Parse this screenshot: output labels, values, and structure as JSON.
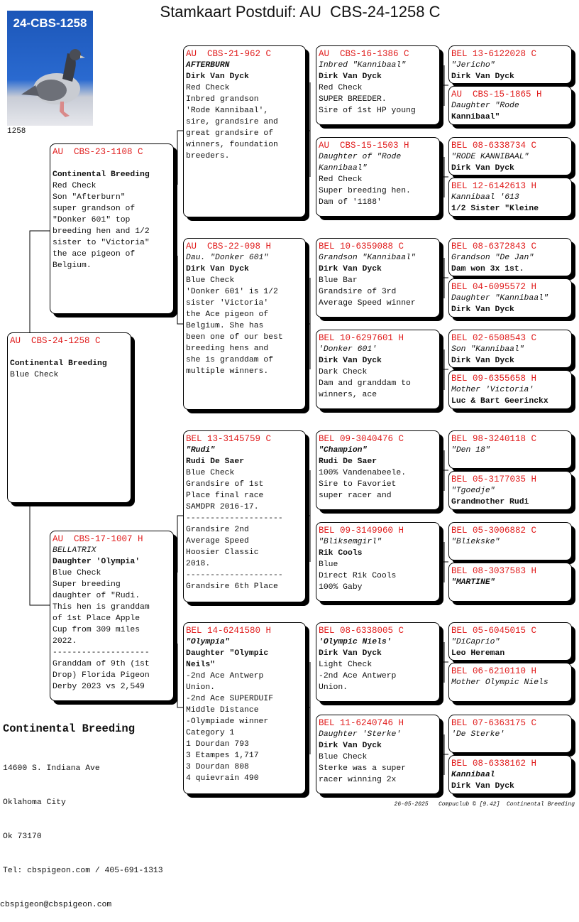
{
  "title": "Stamkaart Postduif: AU  CBS-24-1258 C",
  "photo": {
    "label": "24-CBS-1258",
    "caption": "1258"
  },
  "colors": {
    "ring": "#e01b1b",
    "shadow": "#000000",
    "photo_bg": "#2a6ad0"
  },
  "cards": {
    "subject": [
      {
        "t": "AU  CBS-24-1258 C",
        "s": "ring"
      },
      {
        "t": "",
        "s": ""
      },
      {
        "t": "Continental Breeding",
        "s": "b"
      },
      {
        "t": "Blue Check",
        "s": ""
      }
    ],
    "sire": [
      {
        "t": "AU  CBS-23-1108 C",
        "s": "ring"
      },
      {
        "t": "",
        "s": ""
      },
      {
        "t": "Continental Breeding",
        "s": "b"
      },
      {
        "t": "Red Check",
        "s": ""
      },
      {
        "t": "Son \"Afterburn\"",
        "s": ""
      },
      {
        "t": "super grandson of",
        "s": ""
      },
      {
        "t": "\"Donker 601\" top",
        "s": ""
      },
      {
        "t": "breeding hen and 1/2",
        "s": ""
      },
      {
        "t": "sister to \"Victoria\"",
        "s": ""
      },
      {
        "t": "the ace pigeon of",
        "s": ""
      },
      {
        "t": "Belgium.",
        "s": ""
      }
    ],
    "dam": [
      {
        "t": "AU  CBS-17-1007 H",
        "s": "ring"
      },
      {
        "t": "BELLATRIX",
        "s": "i"
      },
      {
        "t": "Daughter 'Olympia'",
        "s": "b"
      },
      {
        "t": "Blue Check",
        "s": ""
      },
      {
        "t": "Super breeding",
        "s": ""
      },
      {
        "t": "daughter of \"Rudi.",
        "s": ""
      },
      {
        "t": "This hen is granddam",
        "s": ""
      },
      {
        "t": "of 1st Place Apple",
        "s": ""
      },
      {
        "t": "Cup from 309 miles",
        "s": ""
      },
      {
        "t": "2022.",
        "s": ""
      },
      {
        "t": "--------------------",
        "s": ""
      },
      {
        "t": "Granddam of 9th (1st",
        "s": ""
      },
      {
        "t": "Drop) Florida Pigeon",
        "s": ""
      },
      {
        "t": "Derby 2023 vs 2,549",
        "s": ""
      }
    ],
    "gen3": [
      [
        {
          "t": "AU  CBS-21-962 C",
          "s": "ring"
        },
        {
          "t": "AFTERBURN",
          "s": "bi"
        },
        {
          "t": "Dirk Van Dyck",
          "s": "b"
        },
        {
          "t": "Red Check",
          "s": ""
        },
        {
          "t": "Inbred grandson",
          "s": ""
        },
        {
          "t": "'Rode Kannibaal',",
          "s": ""
        },
        {
          "t": "sire, grandsire and",
          "s": ""
        },
        {
          "t": "great grandsire of",
          "s": ""
        },
        {
          "t": "winners, foundation",
          "s": ""
        },
        {
          "t": "breeders.",
          "s": ""
        }
      ],
      [
        {
          "t": "AU  CBS-22-098 H",
          "s": "ring"
        },
        {
          "t": "Dau. \"Donker 601\"",
          "s": "i"
        },
        {
          "t": "Dirk Van Dyck",
          "s": "b"
        },
        {
          "t": "Blue Check",
          "s": ""
        },
        {
          "t": "'Donker 601' is 1/2",
          "s": ""
        },
        {
          "t": "sister 'Victoria'",
          "s": ""
        },
        {
          "t": "the Ace pigeon of",
          "s": ""
        },
        {
          "t": "Belgium. She has",
          "s": ""
        },
        {
          "t": "been one of our best",
          "s": ""
        },
        {
          "t": "breeding hens and",
          "s": ""
        },
        {
          "t": "she is granddam of",
          "s": ""
        },
        {
          "t": "multiple winners.",
          "s": ""
        }
      ],
      [
        {
          "t": "BEL 13-3145759 C",
          "s": "ring"
        },
        {
          "t": "\"Rudi\"",
          "s": "bi"
        },
        {
          "t": "Rudi De Saer",
          "s": "b"
        },
        {
          "t": "Blue Check",
          "s": ""
        },
        {
          "t": "Grandsire of 1st",
          "s": ""
        },
        {
          "t": "Place final race",
          "s": ""
        },
        {
          "t": "SAMDPR 2016-17.",
          "s": ""
        },
        {
          "t": "--------------------",
          "s": ""
        },
        {
          "t": "Grandsire 2nd",
          "s": ""
        },
        {
          "t": "Average Speed",
          "s": ""
        },
        {
          "t": "Hoosier Classic",
          "s": ""
        },
        {
          "t": "2018.",
          "s": ""
        },
        {
          "t": "--------------------",
          "s": ""
        },
        {
          "t": "Grandsire 6th Place",
          "s": ""
        }
      ],
      [
        {
          "t": "BEL 14-6241580 H",
          "s": "ring"
        },
        {
          "t": "\"Olympia\"",
          "s": "bi"
        },
        {
          "t": "Daughter \"Olympic",
          "s": "b"
        },
        {
          "t": "Neils\"",
          "s": "b"
        },
        {
          "t": "-2nd Ace Antwerp",
          "s": ""
        },
        {
          "t": "Union.",
          "s": ""
        },
        {
          "t": "-2nd Ace SUPERDUIF",
          "s": ""
        },
        {
          "t": "Middle Distance",
          "s": ""
        },
        {
          "t": "-Olympiade winner",
          "s": ""
        },
        {
          "t": "Category 1",
          "s": ""
        },
        {
          "t": "1 Dourdan 793",
          "s": ""
        },
        {
          "t": "3 Etampes 1,717",
          "s": ""
        },
        {
          "t": "3 Dourdan 808",
          "s": ""
        },
        {
          "t": "4 quievrain 490",
          "s": ""
        }
      ]
    ],
    "gen4": [
      [
        {
          "t": "AU  CBS-16-1386 C",
          "s": "ring"
        },
        {
          "t": "Inbred \"Kannibaal\"",
          "s": "i"
        },
        {
          "t": "Dirk Van Dyck",
          "s": "b"
        },
        {
          "t": "Red Check",
          "s": ""
        },
        {
          "t": "SUPER BREEDER.",
          "s": ""
        },
        {
          "t": "Sire of 1st HP young",
          "s": ""
        }
      ],
      [
        {
          "t": "AU  CBS-15-1503 H",
          "s": "ring"
        },
        {
          "t": "Daughter of \"Rode",
          "s": "i"
        },
        {
          "t": "Kannibaal\"",
          "s": "i"
        },
        {
          "t": "Red Check",
          "s": ""
        },
        {
          "t": "Super breeding hen.",
          "s": ""
        },
        {
          "t": "Dam of '1188'",
          "s": ""
        }
      ],
      [
        {
          "t": "BEL 10-6359088 C",
          "s": "ring"
        },
        {
          "t": "Grandson \"Kannibaal\"",
          "s": "i"
        },
        {
          "t": "Dirk Van Dyck",
          "s": "b"
        },
        {
          "t": "Blue Bar",
          "s": ""
        },
        {
          "t": "Grandsire of 3rd",
          "s": ""
        },
        {
          "t": "Average Speed winner",
          "s": ""
        }
      ],
      [
        {
          "t": "BEL 10-6297601 H",
          "s": "ring"
        },
        {
          "t": "'Donker 601'",
          "s": "i"
        },
        {
          "t": "Dirk Van Dyck",
          "s": "b"
        },
        {
          "t": "Dark Check",
          "s": ""
        },
        {
          "t": "Dam and granddam to",
          "s": ""
        },
        {
          "t": "winners, ace",
          "s": ""
        }
      ],
      [
        {
          "t": "BEL 09-3040476 C",
          "s": "ring"
        },
        {
          "t": "\"Champion\"",
          "s": "bi"
        },
        {
          "t": "Rudi De Saer",
          "s": "b"
        },
        {
          "t": "100% Vandenabeele.",
          "s": ""
        },
        {
          "t": "Sire to Favoriet",
          "s": ""
        },
        {
          "t": "super racer and",
          "s": ""
        }
      ],
      [
        {
          "t": "BEL 09-3149960 H",
          "s": "ring"
        },
        {
          "t": "\"Bliksemgirl\"",
          "s": "i"
        },
        {
          "t": "Rik Cools",
          "s": "b"
        },
        {
          "t": "Blue",
          "s": ""
        },
        {
          "t": "Direct Rik Cools",
          "s": ""
        },
        {
          "t": "100% Gaby",
          "s": ""
        }
      ],
      [
        {
          "t": "BEL 08-6338005 C",
          "s": "ring"
        },
        {
          "t": "'Olympic Niels'",
          "s": "bi"
        },
        {
          "t": "Dirk Van Dyck",
          "s": "b"
        },
        {
          "t": "Light Check",
          "s": ""
        },
        {
          "t": "-2nd Ace Antwerp",
          "s": ""
        },
        {
          "t": "Union.",
          "s": ""
        }
      ],
      [
        {
          "t": "BEL 11-6240746 H",
          "s": "ring"
        },
        {
          "t": "Daughter 'Sterke'",
          "s": "i"
        },
        {
          "t": "Dirk Van Dyck",
          "s": "b"
        },
        {
          "t": "Blue Check",
          "s": ""
        },
        {
          "t": "Sterke was a super",
          "s": ""
        },
        {
          "t": "racer winning 2x",
          "s": ""
        }
      ]
    ],
    "gen5": [
      [
        {
          "t": "BEL 13-6122028 C",
          "s": "ring"
        },
        {
          "t": "\"Jericho\"",
          "s": "i"
        },
        {
          "t": "Dirk Van Dyck",
          "s": "b"
        }
      ],
      [
        {
          "t": "AU  CBS-15-1865 H",
          "s": "ring"
        },
        {
          "t": "Daughter \"Rode",
          "s": "i"
        },
        {
          "t": "Kannibaal\"",
          "s": "b"
        }
      ],
      [
        {
          "t": "BEL 08-6338734 C",
          "s": "ring"
        },
        {
          "t": "\"RODE KANNIBAAL\"",
          "s": "i"
        },
        {
          "t": "Dirk Van Dyck",
          "s": "b"
        }
      ],
      [
        {
          "t": "BEL 12-6142613 H",
          "s": "ring"
        },
        {
          "t": "Kannibaal '613",
          "s": "i"
        },
        {
          "t": "1/2 Sister \"Kleine",
          "s": "b"
        }
      ],
      [
        {
          "t": "BEL 08-6372843 C",
          "s": "ring"
        },
        {
          "t": "Grandson \"De Jan\"",
          "s": "i"
        },
        {
          "t": "Dam won 3x 1st.",
          "s": "b"
        }
      ],
      [
        {
          "t": "BEL 04-6095572 H",
          "s": "ring"
        },
        {
          "t": "Daughter \"Kannibaal\"",
          "s": "i"
        },
        {
          "t": "Dirk Van Dyck",
          "s": "b"
        }
      ],
      [
        {
          "t": "BEL 02-6508543 C",
          "s": "ring"
        },
        {
          "t": "Son \"Kannibaal\"",
          "s": "i"
        },
        {
          "t": "Dirk Van Dyck",
          "s": "b"
        }
      ],
      [
        {
          "t": "BEL 09-6355658 H",
          "s": "ring"
        },
        {
          "t": "Mother 'Victoria'",
          "s": "i"
        },
        {
          "t": "Luc & Bart Geerinckx",
          "s": "b"
        }
      ],
      [
        {
          "t": "BEL 98-3240118 C",
          "s": "ring"
        },
        {
          "t": "\"Den 18\"",
          "s": "i"
        }
      ],
      [
        {
          "t": "BEL 05-3177035 H",
          "s": "ring"
        },
        {
          "t": "\"Tgoedje\"",
          "s": "i"
        },
        {
          "t": "Grandmother Rudi",
          "s": "b"
        }
      ],
      [
        {
          "t": "BEL 05-3006882 C",
          "s": "ring"
        },
        {
          "t": "\"Bliekske\"",
          "s": "i"
        }
      ],
      [
        {
          "t": "BEL 08-3037583 H",
          "s": "ring"
        },
        {
          "t": "\"MARTINE\"",
          "s": "bi"
        }
      ],
      [
        {
          "t": "BEL 05-6045015 C",
          "s": "ring"
        },
        {
          "t": "\"DiCaprio\"",
          "s": "i"
        },
        {
          "t": "Leo Hereman",
          "s": "b"
        }
      ],
      [
        {
          "t": "BEL 06-6210110 H",
          "s": "ring"
        },
        {
          "t": "Mother Olympic Niels",
          "s": "i"
        }
      ],
      [
        {
          "t": "BEL 07-6363175 C",
          "s": "ring"
        },
        {
          "t": "'De Sterke'",
          "s": "i"
        }
      ],
      [
        {
          "t": "BEL 08-6338162 H",
          "s": "ring"
        },
        {
          "t": "Kannibaal",
          "s": "bi"
        },
        {
          "t": "Dirk Van Dyck",
          "s": "b"
        }
      ]
    ]
  },
  "owner": {
    "name": "Continental Breeding",
    "address": [
      "14600 S. Indiana Ave",
      "Oklahoma City",
      "Ok 73170",
      "Tel: cbspigeon.com / 405-691-1313",
      "cbspigeon@cbspigeon.com"
    ]
  },
  "credits": "26-05-2025   Compuclub © [9.42]  Continental Breeding"
}
